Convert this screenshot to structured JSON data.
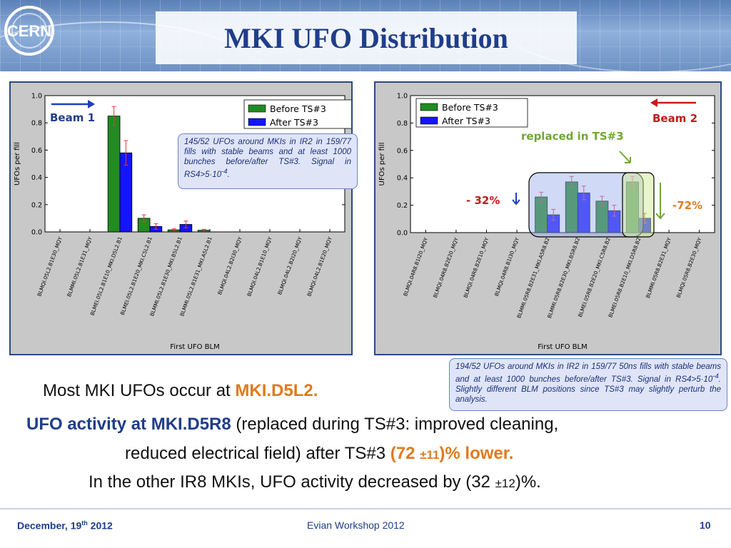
{
  "slide": {
    "title": "MKI UFO Distribution",
    "footer_date_prefix": "December, 19",
    "footer_date_sup": "th",
    "footer_date_suffix": " 2012",
    "footer_center": "Evian Workshop 2012",
    "footer_page": "10"
  },
  "colors": {
    "before": "#228b22",
    "after": "#1414ff",
    "title": "#1f3d8a",
    "highlight": "#e07a1e"
  },
  "annotations": {
    "beam1": "Beam 1",
    "beam2": "Beam 2",
    "replaced": "replaced in TS#3",
    "drop32": "- 32%",
    "drop72": "-72%",
    "note1": "145/52 UFOs around MKIs in IR2 in 159/77 fills with stable beams and at least 1000 bunches before/after TS#3. Signal in RS4>5·10",
    "note1_sup": "-4",
    "note1_end": ".",
    "note2": "194/52 UFOs around MKIs in IR2 in 159/77 50ns fills with stable beams and  at least 1000 bunches before/after TS#3. Signal in RS4>5·10",
    "note2_sup": "-4",
    "note2_end": ". Slightly different BLM positions since TS#3 may slightly perturb the analysis."
  },
  "text": {
    "line1_a": "Most MKI UFOs occur at ",
    "line1_b": "MKI.D5L2.",
    "line2_a": "UFO activity at MKI.D5R8",
    "line2_b": " (replaced during TS#3: improved cleaning,",
    "line3_a": "reduced electrical field) after TS#3 ",
    "line3_b": "(72 ",
    "line3_c": "±11",
    "line3_d": ")% lower.",
    "line4_a": "In the other IR8 MKIs, UFO activity decreased by (32 ",
    "line4_b": "±12",
    "line4_c": ")%."
  },
  "chart_data": [
    {
      "type": "bar",
      "xlabel": "First UFO BLM",
      "ylabel": "UFOs per fill",
      "ylim": [
        0,
        1.0
      ],
      "yticks": [
        "0.0",
        "0.2",
        "0.4",
        "0.6",
        "0.8",
        "1.0"
      ],
      "legend": "top-right",
      "categories": [
        "BLMQI.05L2.B1E30_MQY",
        "BLMMI.05L2.B1E31_MQY",
        "BLMEI.05L2.B1E10_MKI.D5L2.B1",
        "BLMEI.05L2.B1E20_MKI.C5L2.B1",
        "BLMMI.05L2.B1E30_MKI.B5L2.B1",
        "BLMMI.05L2.B1E31_MKI.A5L2.B1",
        "BLMQI.04L2.B2I30_MQY",
        "BLMQI.04L2.B1E10_MQY",
        "BLMQI.04L2.B2I20_MQY",
        "BLMQI.04L2.B1E20_MQY"
      ],
      "series": [
        {
          "name": "Before TS#3",
          "values": [
            0,
            0,
            0.85,
            0.1,
            0.015,
            0.012,
            0,
            0,
            0,
            0
          ],
          "errors": [
            0,
            0,
            0.07,
            0.025,
            0.008,
            0.007,
            0,
            0,
            0,
            0
          ]
        },
        {
          "name": "After TS#3",
          "values": [
            0,
            0,
            0.58,
            0.04,
            0.055,
            0,
            0,
            0,
            0,
            0
          ],
          "errors": [
            0,
            0,
            0.09,
            0.02,
            0.025,
            0,
            0,
            0,
            0,
            0
          ]
        }
      ]
    },
    {
      "type": "bar",
      "xlabel": "First UFO BLM",
      "ylabel": "UFOs per fill",
      "ylim": [
        0,
        1.0
      ],
      "yticks": [
        "0.0",
        "0.2",
        "0.4",
        "0.6",
        "0.8",
        "1.0"
      ],
      "legend": "top-left",
      "categories": [
        "BLMQI.04R8.B1I20_MQY",
        "BLMQI.04R8.B2E20_MQY",
        "BLMQI.04R8.B2E10_MQY",
        "BLMQI.04R8.B1I30_MQY",
        "BLMMI.05R8.B2E31_MKI.A5R8.B2",
        "BLMMI.05R8.B2E30_MKI.B5R8.B2",
        "BLMEI.05R8.B2E20_MKI.C5R8.B2",
        "BLMEI.05R8.B2E10_MKI.D5R8.B2",
        "BLMMI.05R8.B2E31_MQY",
        "BLMQI.05R8.B2E30_MQY"
      ],
      "series": [
        {
          "name": "Before TS#3",
          "values": [
            0,
            0,
            0,
            0,
            0.26,
            0.37,
            0.23,
            0.37,
            0,
            0
          ],
          "errors": [
            0,
            0,
            0,
            0,
            0.035,
            0.04,
            0.035,
            0.04,
            0,
            0
          ]
        },
        {
          "name": "After TS#3",
          "values": [
            0,
            0,
            0,
            0,
            0.13,
            0.29,
            0.16,
            0.105,
            0,
            0
          ],
          "errors": [
            0,
            0,
            0,
            0,
            0.04,
            0.05,
            0.04,
            0.035,
            0,
            0
          ]
        }
      ]
    }
  ]
}
